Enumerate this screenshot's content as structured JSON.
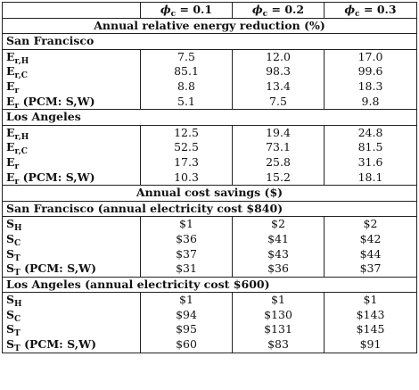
{
  "header": {
    "col1_sym": "ϕ",
    "col1_sub": "c",
    "col1_val": " = 0.1",
    "col2_sym": "ϕ",
    "col2_sub": "c",
    "col2_val": " = 0.2",
    "col3_sym": "ϕ",
    "col3_sub": "c",
    "col3_val": " = 0.3"
  },
  "sections": {
    "energy": {
      "title": "Annual relative energy reduction (%)",
      "sf": {
        "name": "San Francisco",
        "rows": [
          {
            "base": "E",
            "sub": "r,H",
            "suffix": "",
            "v1": "7.5",
            "v2": "12.0",
            "v3": "17.0"
          },
          {
            "base": "E",
            "sub": "r,C",
            "suffix": "",
            "v1": "85.1",
            "v2": "98.3",
            "v3": "99.6"
          },
          {
            "base": "E",
            "sub": "r",
            "suffix": "",
            "v1": "8.8",
            "v2": "13.4",
            "v3": "18.3"
          },
          {
            "base": "E",
            "sub": "r",
            "suffix": " (PCM: S,W)",
            "v1": "5.1",
            "v2": "7.5",
            "v3": "9.8"
          }
        ]
      },
      "la": {
        "name": "Los Angeles",
        "rows": [
          {
            "base": "E",
            "sub": "r,H",
            "suffix": "",
            "v1": "12.5",
            "v2": "19.4",
            "v3": "24.8"
          },
          {
            "base": "E",
            "sub": "r,C",
            "suffix": "",
            "v1": "52.5",
            "v2": "73.1",
            "v3": "81.5"
          },
          {
            "base": "E",
            "sub": "r",
            "suffix": "",
            "v1": "17.3",
            "v2": "25.8",
            "v3": "31.6"
          },
          {
            "base": "E",
            "sub": "r",
            "suffix": " (PCM: S,W)",
            "v1": "10.3",
            "v2": "15.2",
            "v3": "18.1"
          }
        ]
      }
    },
    "cost": {
      "title": "Annual cost savings ($)",
      "sf": {
        "name": "San Francisco (annual electricity cost $840)",
        "rows": [
          {
            "base": "S",
            "sub": "H",
            "suffix": "",
            "v1": "$1",
            "v2": "$2",
            "v3": "$2"
          },
          {
            "base": "S",
            "sub": "C",
            "suffix": "",
            "v1": "$36",
            "v2": "$41",
            "v3": "$42"
          },
          {
            "base": "S",
            "sub": "T",
            "suffix": "",
            "v1": "$37",
            "v2": "$43",
            "v3": "$44"
          },
          {
            "base": "S",
            "sub": "T",
            "suffix": " (PCM: S,W)",
            "v1": "$31",
            "v2": "$36",
            "v3": "$37"
          }
        ]
      },
      "la": {
        "name": "Los Angeles (annual electricity cost $600)",
        "rows": [
          {
            "base": "S",
            "sub": "H",
            "suffix": "",
            "v1": "$1",
            "v2": "$1",
            "v3": "$1"
          },
          {
            "base": "S",
            "sub": "C",
            "suffix": "",
            "v1": "$94",
            "v2": "$130",
            "v3": "$143"
          },
          {
            "base": "S",
            "sub": "T",
            "suffix": "",
            "v1": "$95",
            "v2": "$131",
            "v3": "$145"
          },
          {
            "base": "S",
            "sub": "T",
            "suffix": " (PCM: S,W)",
            "v1": "$60",
            "v2": "$83",
            "v3": "$91"
          }
        ]
      }
    }
  }
}
